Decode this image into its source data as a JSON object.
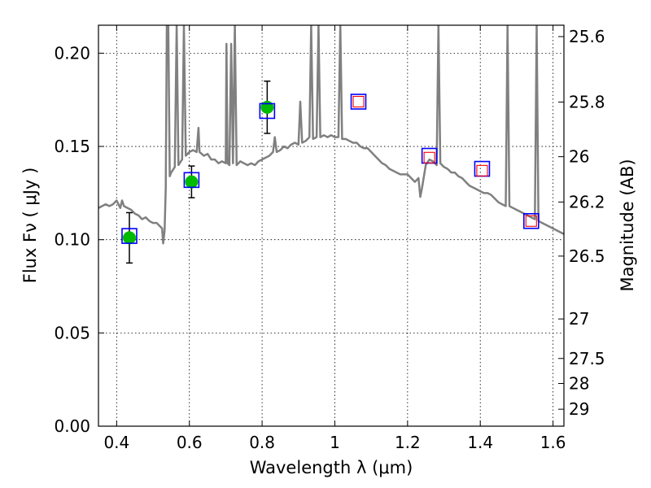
{
  "chart_data": {
    "type": "scatter",
    "xlabel": "Wavelength  λ (μm)",
    "ylabel": "Flux  Fν  ( μJy )",
    "y2label": "Magnitude (AB)",
    "xlim": [
      0.35,
      1.63
    ],
    "ylim": [
      0.0,
      0.215
    ],
    "grid": true,
    "x_ticks": [
      {
        "value": 0.4,
        "label": "0.4"
      },
      {
        "value": 0.6,
        "label": "0.6"
      },
      {
        "value": 0.8,
        "label": "0.8"
      },
      {
        "value": 1.0,
        "label": "1"
      },
      {
        "value": 1.2,
        "label": "1.2"
      },
      {
        "value": 1.4,
        "label": "1.4"
      },
      {
        "value": 1.6,
        "label": "1.6"
      }
    ],
    "y_ticks": [
      {
        "value": 0.0,
        "label": "0.00"
      },
      {
        "value": 0.05,
        "label": "0.05"
      },
      {
        "value": 0.1,
        "label": "0.10"
      },
      {
        "value": 0.15,
        "label": "0.15"
      },
      {
        "value": 0.2,
        "label": "0.20"
      }
    ],
    "mag_ticks": [
      {
        "flux": 0.2089,
        "label": "25.6"
      },
      {
        "flux": 0.1738,
        "label": "25.8"
      },
      {
        "flux": 0.1445,
        "label": "26"
      },
      {
        "flux": 0.1202,
        "label": "26.2"
      },
      {
        "flux": 0.0912,
        "label": "26.5"
      },
      {
        "flux": 0.0575,
        "label": "27"
      },
      {
        "flux": 0.0363,
        "label": "27.5"
      },
      {
        "flux": 0.0229,
        "label": "28"
      },
      {
        "flux": 0.0091,
        "label": "29"
      }
    ],
    "model_sed": {
      "name": "model spectrum",
      "color": "#808080",
      "points": [
        [
          0.35,
          0.117
        ],
        [
          0.36,
          0.118
        ],
        [
          0.37,
          0.119
        ],
        [
          0.38,
          0.118
        ],
        [
          0.39,
          0.119
        ],
        [
          0.4,
          0.121
        ],
        [
          0.41,
          0.117
        ],
        [
          0.415,
          0.121
        ],
        [
          0.42,
          0.118
        ],
        [
          0.43,
          0.117
        ],
        [
          0.44,
          0.116
        ],
        [
          0.45,
          0.114
        ],
        [
          0.46,
          0.113
        ],
        [
          0.47,
          0.111
        ],
        [
          0.48,
          0.112
        ],
        [
          0.49,
          0.11
        ],
        [
          0.5,
          0.109
        ],
        [
          0.51,
          0.109
        ],
        [
          0.52,
          0.107
        ],
        [
          0.525,
          0.106
        ],
        [
          0.528,
          0.098
        ],
        [
          0.532,
          0.105
        ],
        [
          0.535,
          0.128
        ],
        [
          0.538,
          0.215
        ],
        [
          0.542,
          0.215
        ],
        [
          0.546,
          0.134
        ],
        [
          0.55,
          0.136
        ],
        [
          0.56,
          0.139
        ],
        [
          0.565,
          0.215
        ],
        [
          0.57,
          0.14
        ],
        [
          0.58,
          0.143
        ],
        [
          0.585,
          0.215
        ],
        [
          0.59,
          0.145
        ],
        [
          0.6,
          0.147
        ],
        [
          0.61,
          0.148
        ],
        [
          0.62,
          0.147
        ],
        [
          0.625,
          0.16
        ],
        [
          0.628,
          0.147
        ],
        [
          0.64,
          0.145
        ],
        [
          0.65,
          0.146
        ],
        [
          0.66,
          0.143
        ],
        [
          0.67,
          0.143
        ],
        [
          0.68,
          0.141
        ],
        [
          0.69,
          0.142
        ],
        [
          0.7,
          0.141
        ],
        [
          0.702,
          0.205
        ],
        [
          0.705,
          0.141
        ],
        [
          0.71,
          0.14
        ],
        [
          0.715,
          0.205
        ],
        [
          0.72,
          0.141
        ],
        [
          0.725,
          0.215
        ],
        [
          0.73,
          0.14
        ],
        [
          0.74,
          0.142
        ],
        [
          0.75,
          0.141
        ],
        [
          0.76,
          0.14
        ],
        [
          0.77,
          0.141
        ],
        [
          0.78,
          0.14
        ],
        [
          0.79,
          0.142
        ],
        [
          0.8,
          0.143
        ],
        [
          0.81,
          0.144
        ],
        [
          0.82,
          0.145
        ],
        [
          0.83,
          0.147
        ],
        [
          0.835,
          0.155
        ],
        [
          0.84,
          0.147
        ],
        [
          0.85,
          0.148
        ],
        [
          0.86,
          0.15
        ],
        [
          0.87,
          0.149
        ],
        [
          0.88,
          0.151
        ],
        [
          0.89,
          0.152
        ],
        [
          0.9,
          0.151
        ],
        [
          0.905,
          0.174
        ],
        [
          0.91,
          0.152
        ],
        [
          0.92,
          0.153
        ],
        [
          0.93,
          0.155
        ],
        [
          0.935,
          0.215
        ],
        [
          0.94,
          0.154
        ],
        [
          0.95,
          0.155
        ],
        [
          0.955,
          0.215
        ],
        [
          0.96,
          0.155
        ],
        [
          0.97,
          0.156
        ],
        [
          0.98,
          0.155
        ],
        [
          0.99,
          0.156
        ],
        [
          1.0,
          0.155
        ],
        [
          1.01,
          0.155
        ],
        [
          1.015,
          0.215
        ],
        [
          1.02,
          0.154
        ],
        [
          1.03,
          0.154
        ],
        [
          1.04,
          0.153
        ],
        [
          1.05,
          0.152
        ],
        [
          1.06,
          0.152
        ],
        [
          1.07,
          0.15
        ],
        [
          1.08,
          0.149
        ],
        [
          1.09,
          0.149
        ],
        [
          1.1,
          0.147
        ],
        [
          1.11,
          0.145
        ],
        [
          1.12,
          0.143
        ],
        [
          1.13,
          0.141
        ],
        [
          1.14,
          0.14
        ],
        [
          1.15,
          0.138
        ],
        [
          1.16,
          0.137
        ],
        [
          1.17,
          0.136
        ],
        [
          1.18,
          0.135
        ],
        [
          1.19,
          0.135
        ],
        [
          1.2,
          0.135
        ],
        [
          1.21,
          0.133
        ],
        [
          1.22,
          0.131
        ],
        [
          1.23,
          0.133
        ],
        [
          1.235,
          0.123
        ],
        [
          1.24,
          0.128
        ],
        [
          1.25,
          0.14
        ],
        [
          1.26,
          0.143
        ],
        [
          1.27,
          0.142
        ],
        [
          1.28,
          0.14
        ],
        [
          1.285,
          0.215
        ],
        [
          1.29,
          0.141
        ],
        [
          1.3,
          0.139
        ],
        [
          1.31,
          0.138
        ],
        [
          1.32,
          0.136
        ],
        [
          1.33,
          0.136
        ],
        [
          1.34,
          0.134
        ],
        [
          1.35,
          0.133
        ],
        [
          1.36,
          0.131
        ],
        [
          1.37,
          0.129
        ],
        [
          1.38,
          0.128
        ],
        [
          1.39,
          0.127
        ],
        [
          1.4,
          0.126
        ],
        [
          1.41,
          0.125
        ],
        [
          1.42,
          0.125
        ],
        [
          1.43,
          0.124
        ],
        [
          1.44,
          0.122
        ],
        [
          1.45,
          0.12
        ],
        [
          1.46,
          0.119
        ],
        [
          1.47,
          0.118
        ],
        [
          1.475,
          0.215
        ],
        [
          1.48,
          0.118
        ],
        [
          1.49,
          0.117
        ],
        [
          1.5,
          0.116
        ],
        [
          1.51,
          0.115
        ],
        [
          1.52,
          0.114
        ],
        [
          1.53,
          0.113
        ],
        [
          1.54,
          0.112
        ],
        [
          1.55,
          0.111
        ],
        [
          1.555,
          0.215
        ],
        [
          1.56,
          0.11
        ],
        [
          1.57,
          0.109
        ],
        [
          1.58,
          0.108
        ],
        [
          1.59,
          0.107
        ],
        [
          1.6,
          0.106
        ],
        [
          1.61,
          0.105
        ],
        [
          1.62,
          0.104
        ],
        [
          1.63,
          0.103
        ]
      ]
    },
    "observed": {
      "name": "observed photometry",
      "color": "#00bb00",
      "points": [
        {
          "x": 0.435,
          "y": 0.101,
          "yerr": 0.0135
        },
        {
          "x": 0.606,
          "y": 0.131,
          "yerr": 0.0085
        },
        {
          "x": 0.814,
          "y": 0.171,
          "yerr": 0.014
        }
      ]
    },
    "model_phot_blue": {
      "name": "model photometry (blue squares)",
      "color": "#0000ff",
      "points": [
        {
          "x": 0.435,
          "y": 0.102
        },
        {
          "x": 0.606,
          "y": 0.132
        },
        {
          "x": 0.814,
          "y": 0.169
        },
        {
          "x": 1.065,
          "y": 0.174
        },
        {
          "x": 1.26,
          "y": 0.145
        },
        {
          "x": 1.405,
          "y": 0.138
        },
        {
          "x": 1.54,
          "y": 0.11
        }
      ]
    },
    "model_phot_red": {
      "name": "model photometry (red squares)",
      "color": "#ff0000",
      "points": [
        {
          "x": 1.065,
          "y": 0.174
        },
        {
          "x": 1.26,
          "y": 0.144
        },
        {
          "x": 1.405,
          "y": 0.137
        },
        {
          "x": 1.54,
          "y": 0.11
        }
      ]
    }
  }
}
